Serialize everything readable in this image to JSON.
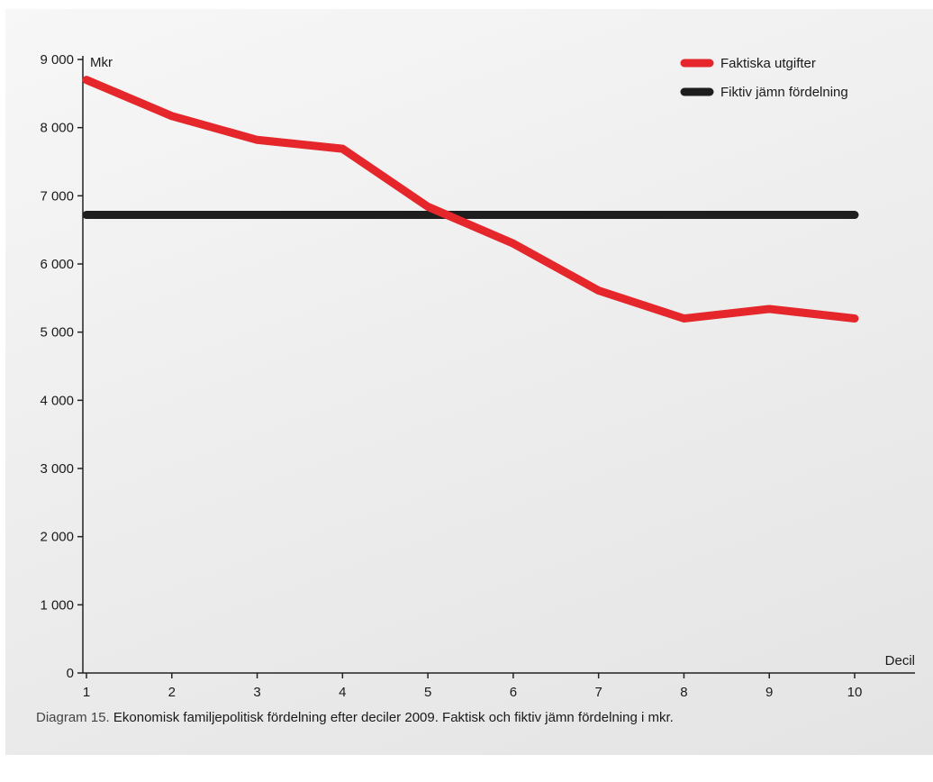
{
  "chart_data": {
    "type": "line",
    "unit_label": "Mkr",
    "xlabel": "Decil",
    "ylabel": "",
    "x": [
      1,
      2,
      3,
      4,
      5,
      6,
      7,
      8,
      9,
      10
    ],
    "x_tick_labels": [
      "1",
      "2",
      "3",
      "4",
      "5",
      "6",
      "7",
      "8",
      "9",
      "10"
    ],
    "ylim": [
      0,
      9000
    ],
    "y_ticks": [
      0,
      1000,
      2000,
      3000,
      4000,
      5000,
      6000,
      7000,
      8000,
      9000
    ],
    "y_tick_labels": [
      "0",
      "1 000",
      "2 000",
      "3 000",
      "4 000",
      "5 000",
      "6 000",
      "7 000",
      "8 000",
      "9 000"
    ],
    "series": [
      {
        "name": "Faktiska utgifter",
        "color": "#e5262b",
        "values": [
          8700,
          8170,
          7820,
          7690,
          6840,
          6300,
          5610,
          5200,
          5340,
          5200
        ]
      },
      {
        "name": "Fiktiv jämn fördelning",
        "color": "#1e1e1e",
        "values": [
          6720,
          6720,
          6720,
          6720,
          6720,
          6720,
          6720,
          6720,
          6720,
          6720
        ]
      }
    ],
    "grid": false,
    "legend_position": "top-right"
  },
  "caption": {
    "prefix": "Diagram 15.",
    "text": "Ekonomisk familjepolitisk fördelning efter deciler 2009. Faktisk och fiktiv jämn fördelning i mkr."
  }
}
